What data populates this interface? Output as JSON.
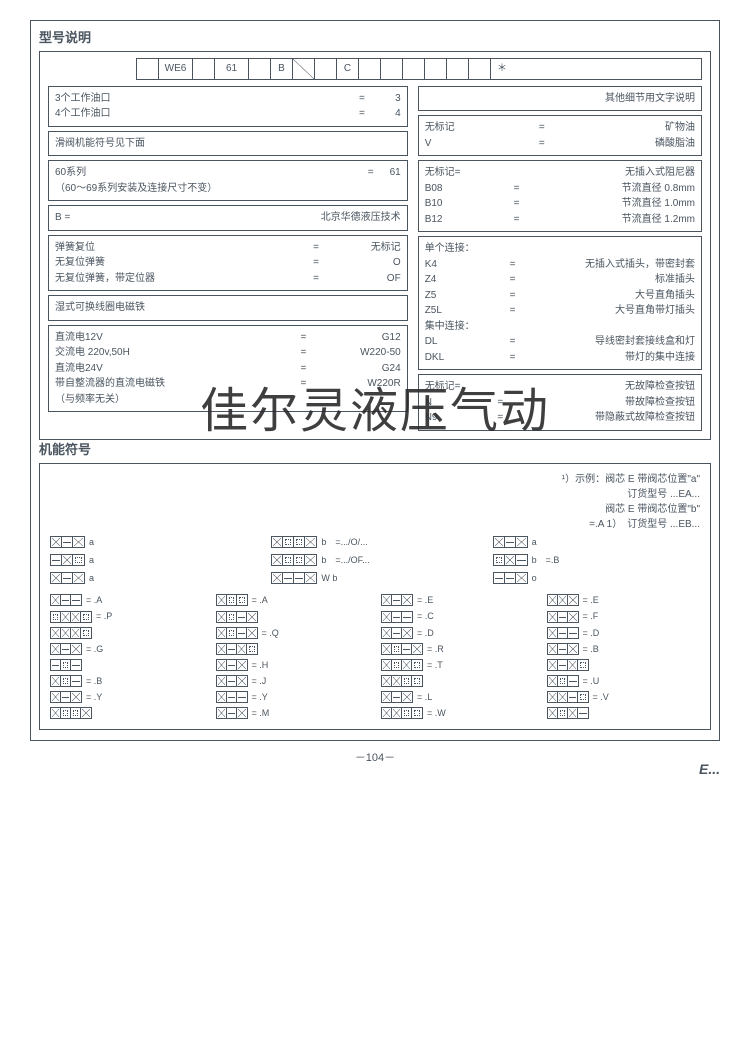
{
  "page_number": "－104－",
  "footer_mark": "E...",
  "watermark": "佳尔灵液压气动",
  "section1": {
    "title": "型号说明",
    "code_cells": [
      "",
      "WE6",
      "",
      "61",
      "",
      "B",
      "/",
      "",
      "C",
      "",
      "",
      "",
      "",
      "",
      "",
      "＊"
    ],
    "left_boxes": [
      {
        "rows": [
          {
            "l": "3个工作油口",
            "e": "=",
            "v": "3"
          },
          {
            "l": "4个工作油口",
            "e": "=",
            "v": "4"
          }
        ]
      },
      {
        "rows": [
          {
            "l": "滑阀机能符号见下面",
            "e": "",
            "v": ""
          }
        ]
      },
      {
        "rows": [
          {
            "l": "60系列",
            "e": "=",
            "v": "61"
          },
          {
            "l": "（60～69系列安装及连接尺寸不变）",
            "e": "",
            "v": ""
          }
        ]
      },
      {
        "rows": [
          {
            "l": "B =",
            "e": "",
            "v": "北京华德液压技术"
          }
        ]
      },
      {
        "rows": [
          {
            "l": "弹簧复位",
            "e": "=",
            "v": "无标记"
          },
          {
            "l": "无复位弹簧",
            "e": "=",
            "v": "O"
          },
          {
            "l": "无复位弹簧，带定位器",
            "e": "=",
            "v": "OF"
          }
        ]
      },
      {
        "rows": [
          {
            "l": "湿式可换线圈电磁铁",
            "e": "",
            "v": ""
          }
        ]
      },
      {
        "rows": [
          {
            "l": "直流电12V",
            "e": "=",
            "v": "G12"
          },
          {
            "l": "交流电 220v,50H",
            "e": "=",
            "v": "W220-50"
          },
          {
            "l": "直流电24V",
            "e": "=",
            "v": "G24"
          },
          {
            "l": "带自整流器的直流电磁铁",
            "e": "=",
            "v": "W220R"
          },
          {
            "l": "（与频率无关）",
            "e": "",
            "v": ""
          }
        ]
      }
    ],
    "right_boxes": [
      {
        "rows": [
          {
            "l": "",
            "e": "",
            "v": "其他细节用文字说明"
          }
        ]
      },
      {
        "rows": [
          {
            "l": "无标记",
            "e": "=",
            "v": "矿物油"
          },
          {
            "l": "V",
            "e": "=",
            "v": "磷酸脂油"
          }
        ]
      },
      {
        "rows": [
          {
            "l": "无标记=",
            "e": "",
            "v": "无插入式阻尼器"
          },
          {
            "l": "B08",
            "e": "=",
            "v": "节流直径 0.8mm"
          },
          {
            "l": "B10",
            "e": "=",
            "v": "节流直径 1.0mm"
          },
          {
            "l": "B12",
            "e": "=",
            "v": "节流直径 1.2mm"
          }
        ]
      },
      {
        "rows": [
          {
            "l": "单个连接：",
            "e": "",
            "v": ""
          },
          {
            "l": "K4",
            "e": "=",
            "v": "无插入式插头，带密封套"
          },
          {
            "l": "Z4",
            "e": "=",
            "v": "标准插头"
          },
          {
            "l": "Z5",
            "e": "=",
            "v": "大号直角插头"
          },
          {
            "l": "Z5L",
            "e": "=",
            "v": "大号直角带灯插头"
          },
          {
            "l": "集中连接：",
            "e": "",
            "v": ""
          },
          {
            "l": "DL",
            "e": "=",
            "v": "导线密封套接线盒和灯"
          },
          {
            "l": "DKL",
            "e": "=",
            "v": "带灯的集中连接"
          }
        ]
      },
      {
        "rows": [
          {
            "l": "无标记=",
            "e": "",
            "v": "无故障检查按钮"
          },
          {
            "l": "N",
            "e": "=",
            "v": "带故障检查按钮"
          },
          {
            "l": "N9",
            "e": "=",
            "v": "带隐蔽式故障检查按钮"
          }
        ]
      }
    ]
  },
  "section2": {
    "title": "机能符号",
    "legend": [
      "¹）示例：阀芯 E 带阀芯位置\"a\"",
      "订货型号 ...EA...",
      "阀芯 E 带阀芯位置\"b\"",
      "=.A 1）　订货型号 ...EB..."
    ],
    "top_items": [
      {
        "cfg": [
          "x",
          "h",
          "x"
        ],
        "lbl": "a"
      },
      {
        "cfg": [
          "x",
          "d",
          "d",
          "x"
        ],
        "lbl": "b　=.../O/..."
      },
      {
        "cfg": [
          "x",
          "h",
          "x"
        ],
        "lbl": "a"
      },
      {
        "cfg": [
          "h",
          "x",
          "d"
        ],
        "lbl": "a"
      },
      {
        "cfg": [
          "x",
          "d",
          "d",
          "x"
        ],
        "lbl": "b　=.../OF..."
      },
      {
        "cfg": [
          "d",
          "x",
          "h"
        ],
        "lbl": "b　=.B"
      },
      {
        "cfg": [
          "x",
          "h",
          "x"
        ],
        "lbl": "a"
      },
      {
        "cfg": [
          "x",
          "h",
          "h",
          "x"
        ],
        "lbl": "W b"
      },
      {
        "cfg": [
          "h",
          "h",
          "x"
        ],
        "lbl": "o"
      }
    ],
    "grid_items": [
      {
        "cfg": [
          "x",
          "h",
          "h"
        ],
        "lbl": "= .A"
      },
      {
        "cfg": [
          "x",
          "d",
          "d"
        ],
        "lbl": "= .A"
      },
      {
        "cfg": [
          "x",
          "h",
          "x"
        ],
        "lbl": "= .E"
      },
      {
        "cfg": [
          "x",
          "x",
          "x"
        ],
        "lbl": "= .E"
      },
      {
        "cfg": [
          "d",
          "x",
          "x",
          "d"
        ],
        "lbl": "= .P"
      },
      {
        "cfg": [
          "x",
          "d",
          "h",
          "x"
        ],
        "lbl": ""
      },
      {
        "cfg": [
          "x",
          "h",
          "h"
        ],
        "lbl": "= .C"
      },
      {
        "cfg": [
          "x",
          "h",
          "x"
        ],
        "lbl": "= .F"
      },
      {
        "cfg": [
          "x",
          "x",
          "x",
          "d"
        ],
        "lbl": ""
      },
      {
        "cfg": [
          "x",
          "d",
          "h",
          "x"
        ],
        "lbl": "= .Q"
      },
      {
        "cfg": [
          "x",
          "h",
          "x"
        ],
        "lbl": "= .D"
      },
      {
        "cfg": [
          "x",
          "h",
          "h"
        ],
        "lbl": "= .D"
      },
      {
        "cfg": [
          "x",
          "h",
          "x"
        ],
        "lbl": "= .G"
      },
      {
        "cfg": [
          "x",
          "h",
          "x",
          "d"
        ],
        "lbl": ""
      },
      {
        "cfg": [
          "x",
          "d",
          "h",
          "x"
        ],
        "lbl": "= .R"
      },
      {
        "cfg": [
          "x",
          "h",
          "x"
        ],
        "lbl": "= .B"
      },
      {
        "cfg": [
          "h",
          "d",
          "h"
        ],
        "lbl": ""
      },
      {
        "cfg": [
          "x",
          "h",
          "x"
        ],
        "lbl": "= .H"
      },
      {
        "cfg": [
          "x",
          "d",
          "x",
          "d"
        ],
        "lbl": "= .T"
      },
      {
        "cfg": [
          "x",
          "h",
          "x",
          "d"
        ],
        "lbl": ""
      },
      {
        "cfg": [
          "x",
          "d",
          "h"
        ],
        "lbl": "= .B"
      },
      {
        "cfg": [
          "x",
          "h",
          "x"
        ],
        "lbl": "= .J"
      },
      {
        "cfg": [
          "x",
          "x",
          "d",
          "d"
        ],
        "lbl": ""
      },
      {
        "cfg": [
          "x",
          "d",
          "h"
        ],
        "lbl": "= .U"
      },
      {
        "cfg": [
          "x",
          "h",
          "x"
        ],
        "lbl": "= .Y"
      },
      {
        "cfg": [
          "x",
          "h",
          "h"
        ],
        "lbl": "= .Y"
      },
      {
        "cfg": [
          "x",
          "h",
          "x"
        ],
        "lbl": "= .L"
      },
      {
        "cfg": [
          "x",
          "x",
          "h",
          "d"
        ],
        "lbl": "= .V"
      },
      {
        "cfg": [
          "x",
          "d",
          "d",
          "x"
        ],
        "lbl": ""
      },
      {
        "cfg": [
          "x",
          "h",
          "x"
        ],
        "lbl": "= .M"
      },
      {
        "cfg": [
          "x",
          "x",
          "d",
          "d"
        ],
        "lbl": "= .W"
      },
      {
        "cfg": [
          "x",
          "d",
          "x",
          "h"
        ],
        "lbl": ""
      }
    ]
  },
  "colors": {
    "line": "#4a5560",
    "text": "#4a5560",
    "bg": "#ffffff"
  }
}
